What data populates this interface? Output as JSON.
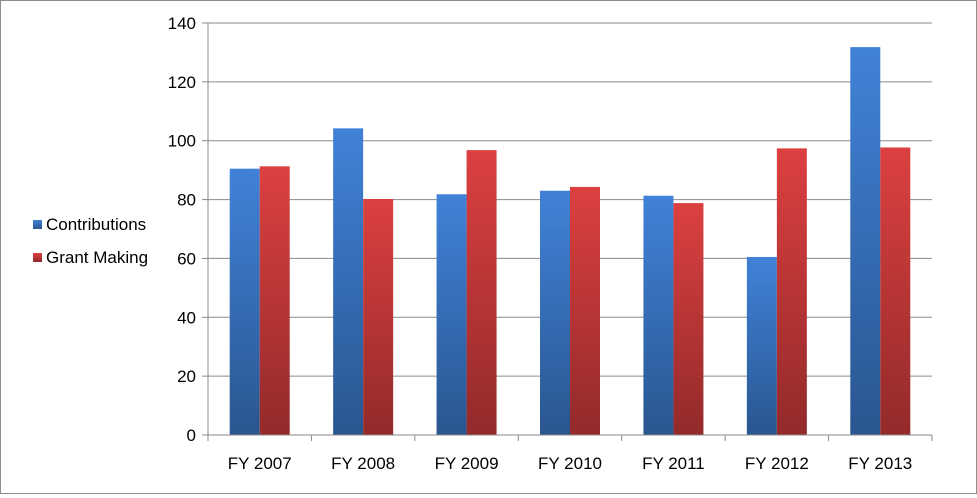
{
  "chart_data": {
    "type": "bar",
    "title": "",
    "xlabel": "",
    "ylabel": "",
    "categories": [
      "FY 2007",
      "FY 2008",
      "FY 2009",
      "FY 2010",
      "FY 2011",
      "FY 2012",
      "FY 2013"
    ],
    "series": [
      {
        "name": "Contributions",
        "color": "#3b78c8",
        "values": [
          90.5,
          104.2,
          81.8,
          83.0,
          81.3,
          60.5,
          131.8
        ]
      },
      {
        "name": "Grant Making",
        "color": "#cc3b3b",
        "values": [
          91.3,
          80.2,
          96.8,
          84.3,
          78.8,
          97.4,
          97.7
        ]
      }
    ],
    "ylim": [
      0,
      140
    ],
    "yticks": [
      0,
      20,
      40,
      60,
      80,
      100,
      120,
      140
    ],
    "ytick_labels": [
      "0",
      "20",
      "40",
      "60",
      "80",
      "100",
      "120",
      "140"
    ],
    "grid": true,
    "legend_position": "left"
  }
}
